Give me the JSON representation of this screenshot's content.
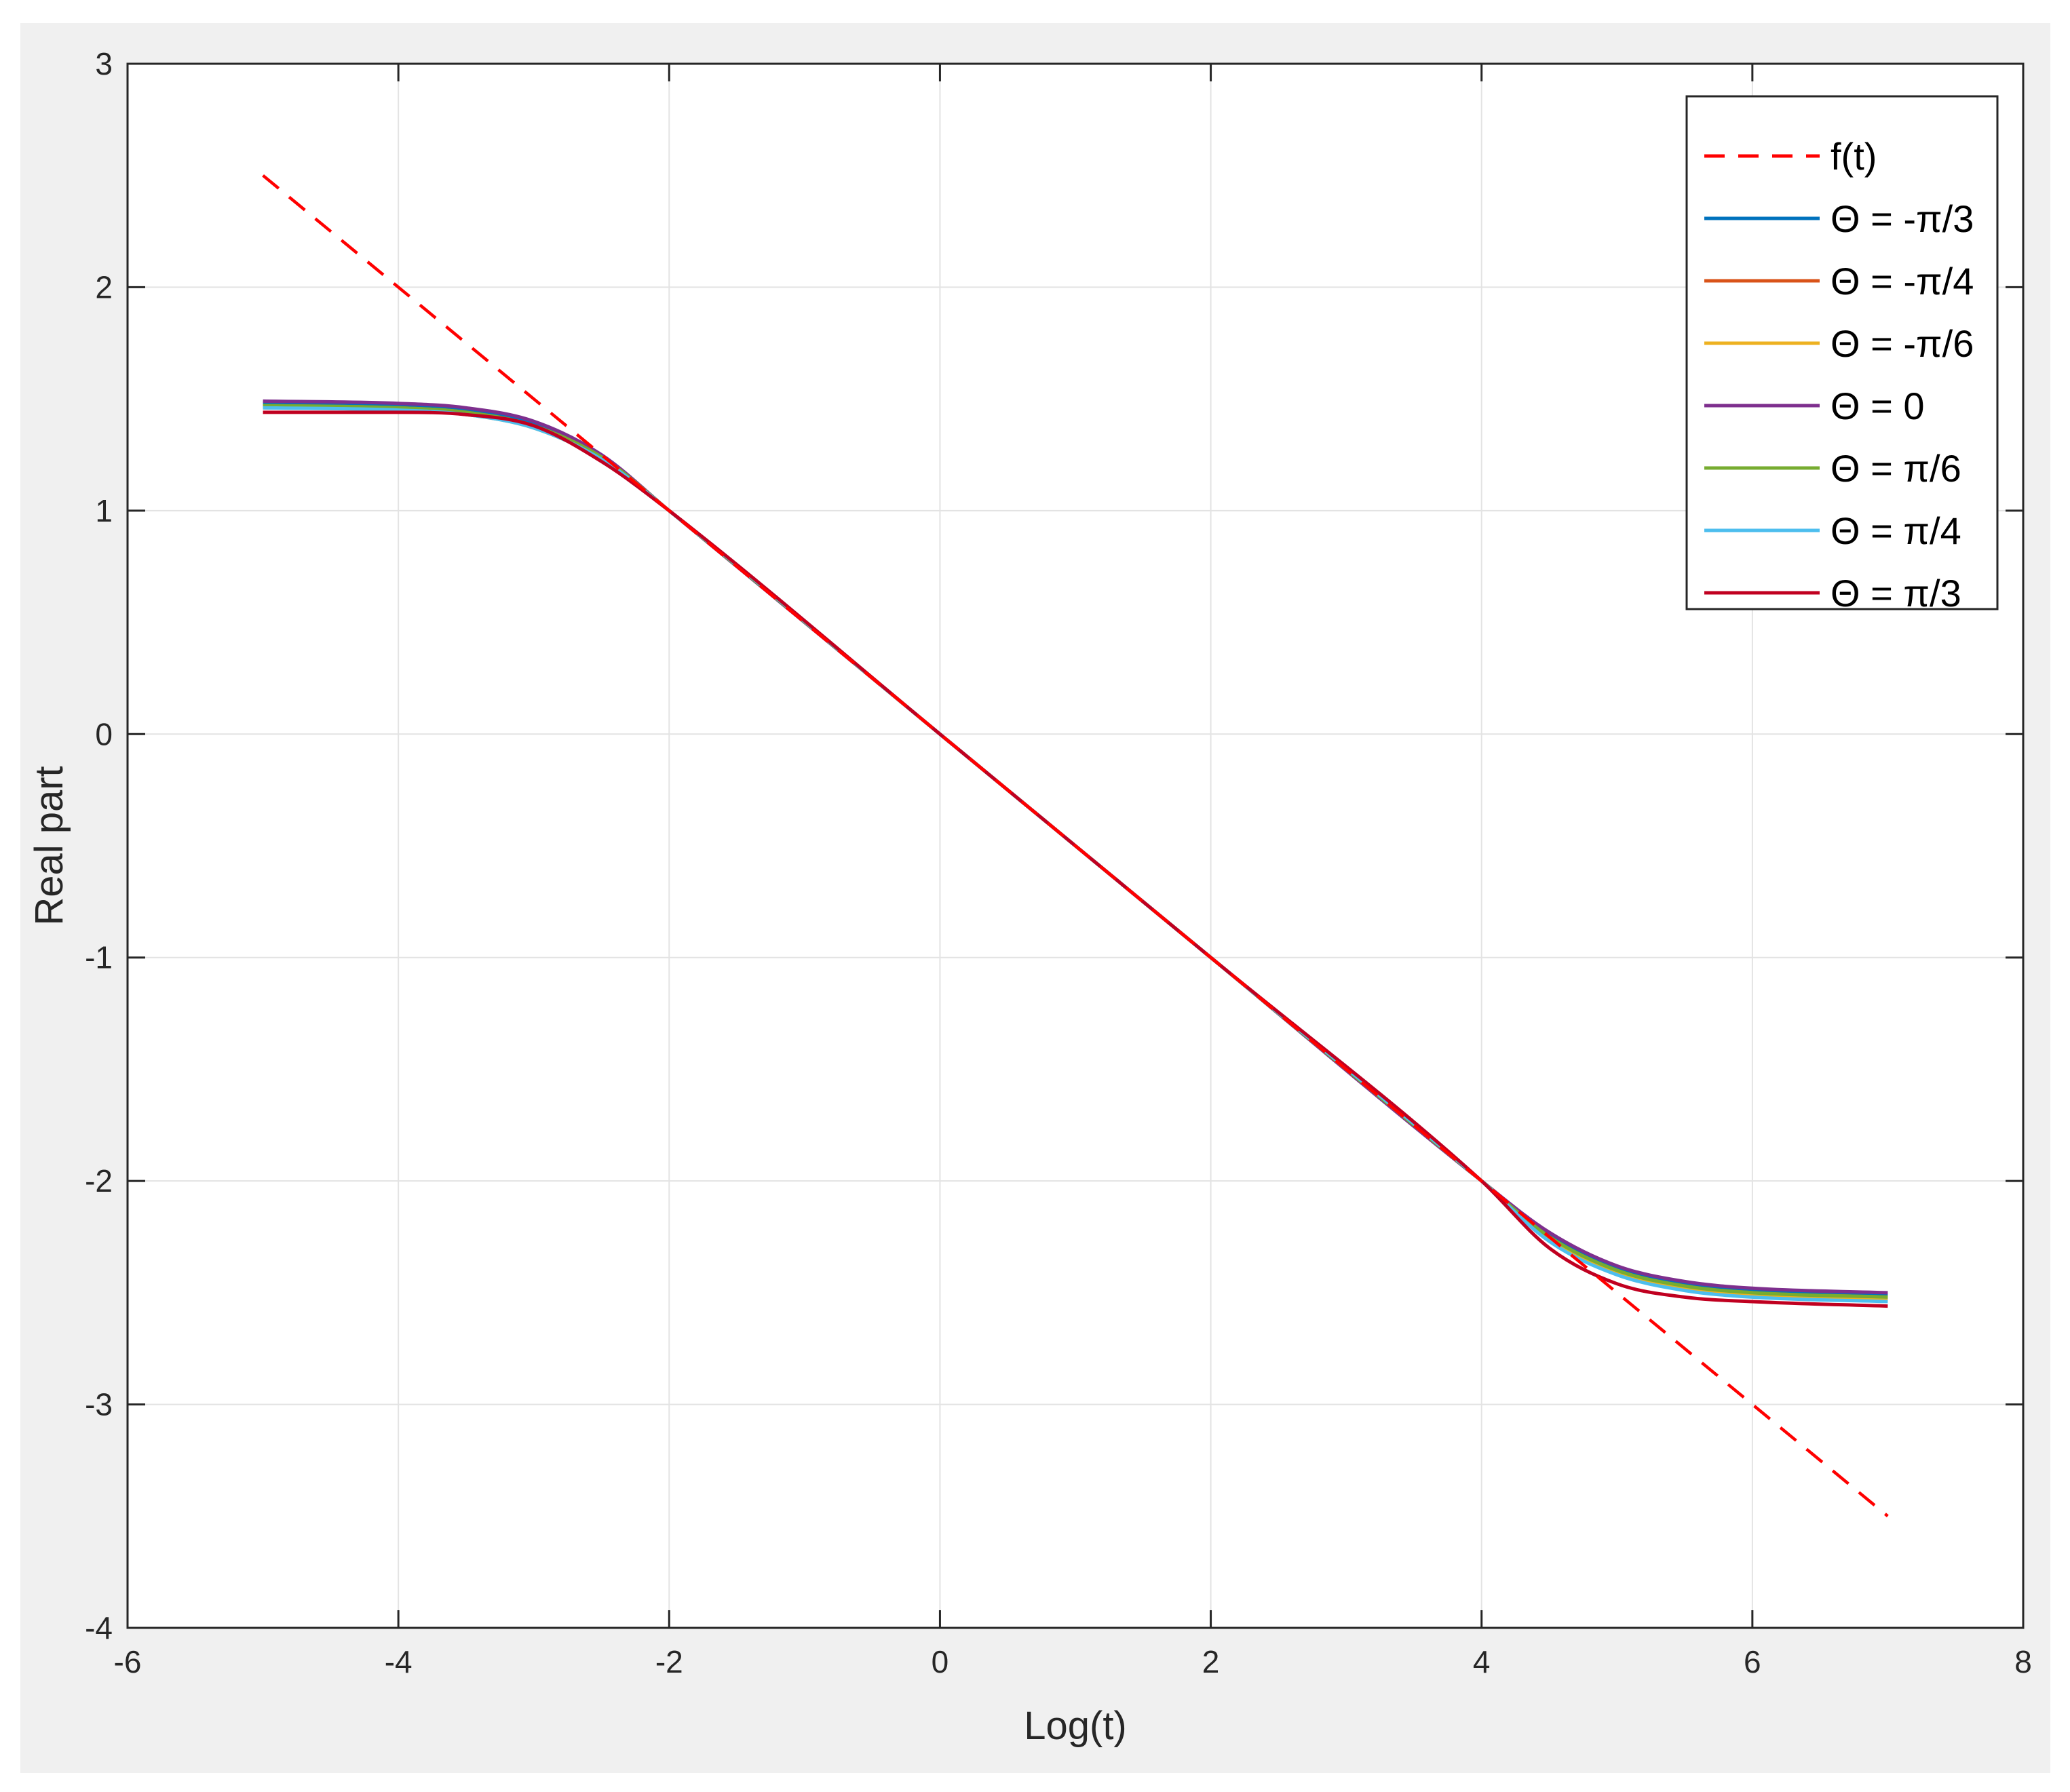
{
  "chart_data": {
    "type": "line",
    "title": "",
    "xlabel": "Log(t)",
    "ylabel": "Real part",
    "xlim": [
      -6,
      8
    ],
    "ylim": [
      -4,
      3
    ],
    "xticks": [
      -6,
      -4,
      -2,
      0,
      2,
      4,
      6,
      8
    ],
    "yticks": [
      -4,
      -3,
      -2,
      -1,
      0,
      1,
      2,
      3
    ],
    "xtick_labels": [
      "-6",
      "-4",
      "-2",
      "0",
      "2",
      "4",
      "6",
      "8"
    ],
    "ytick_labels": [
      "-4",
      "-3",
      "-2",
      "-1",
      "0",
      "1",
      "2",
      "3"
    ],
    "grid": true,
    "legend_position": "top-right",
    "series": [
      {
        "name": "f(t)",
        "label": "f(t)",
        "color": "#ff0000",
        "style": "dashed",
        "x": [
          -5,
          7
        ],
        "y": [
          2.5,
          -3.5
        ]
      },
      {
        "name": "Θ = -π/3",
        "label": "Θ = -π/3",
        "color": "#0072bd",
        "style": "solid",
        "x": [
          -5,
          -4,
          -3.5,
          -3,
          -2.5,
          -2,
          0,
          2,
          4,
          4.5,
          5,
          5.5,
          6,
          7
        ],
        "y": [
          1.48,
          1.47,
          1.45,
          1.39,
          1.24,
          1.0,
          0.0,
          -1.0,
          -2.0,
          -2.24,
          -2.39,
          -2.46,
          -2.49,
          -2.51
        ]
      },
      {
        "name": "Θ = -π/4",
        "label": "Θ = -π/4",
        "color": "#d95319",
        "style": "solid",
        "x": [
          -5,
          -4,
          -3.5,
          -3,
          -2.5,
          -2,
          0,
          2,
          4,
          4.5,
          5,
          5.5,
          6,
          7
        ],
        "y": [
          1.47,
          1.46,
          1.44,
          1.38,
          1.24,
          1.0,
          0.0,
          -1.0,
          -2.0,
          -2.25,
          -2.4,
          -2.47,
          -2.5,
          -2.52
        ]
      },
      {
        "name": "Θ = -π/6",
        "label": "Θ = -π/6",
        "color": "#edb120",
        "style": "solid",
        "x": [
          -5,
          -4,
          -3.5,
          -3,
          -2.5,
          -2,
          0,
          2,
          4,
          4.5,
          5,
          5.5,
          6,
          7
        ],
        "y": [
          1.46,
          1.45,
          1.43,
          1.37,
          1.23,
          1.0,
          0.0,
          -1.0,
          -2.0,
          -2.26,
          -2.41,
          -2.48,
          -2.51,
          -2.53
        ]
      },
      {
        "name": "Θ = 0",
        "label": "Θ = 0",
        "color": "#7e2f8e",
        "style": "solid",
        "x": [
          -5,
          -4,
          -3.5,
          -3,
          -2.5,
          -2,
          0,
          2,
          4,
          4.5,
          5,
          5.5,
          6,
          7
        ],
        "y": [
          1.49,
          1.48,
          1.46,
          1.4,
          1.25,
          1.0,
          0.0,
          -1.0,
          -2.0,
          -2.23,
          -2.38,
          -2.45,
          -2.48,
          -2.5
        ]
      },
      {
        "name": "Θ = π/6",
        "label": "Θ = π/6",
        "color": "#77ac30",
        "style": "solid",
        "x": [
          -5,
          -4,
          -3.5,
          -3,
          -2.5,
          -2,
          0,
          2,
          4,
          4.5,
          5,
          5.5,
          6,
          7
        ],
        "y": [
          1.47,
          1.46,
          1.44,
          1.38,
          1.24,
          1.0,
          0.0,
          -1.0,
          -2.0,
          -2.25,
          -2.4,
          -2.47,
          -2.5,
          -2.52
        ]
      },
      {
        "name": "Θ = π/4",
        "label": "Θ = π/4",
        "color": "#4dbeee",
        "style": "solid",
        "x": [
          -5,
          -4,
          -3.5,
          -3,
          -2.5,
          -2,
          0,
          2,
          4,
          4.5,
          5,
          5.5,
          6,
          7
        ],
        "y": [
          1.46,
          1.45,
          1.43,
          1.37,
          1.23,
          1.0,
          0.0,
          -1.0,
          -2.0,
          -2.27,
          -2.42,
          -2.49,
          -2.52,
          -2.54
        ]
      },
      {
        "name": "Θ = π/3",
        "label": "Θ = π/3",
        "color": "#c00020",
        "style": "solid",
        "x": [
          -5,
          -4,
          -3.5,
          -3,
          -2.5,
          -2,
          0,
          2,
          4,
          4.5,
          5,
          5.5,
          6,
          7
        ],
        "y": [
          1.44,
          1.44,
          1.43,
          1.38,
          1.22,
          1.0,
          0.0,
          -1.0,
          -2.0,
          -2.3,
          -2.46,
          -2.52,
          -2.54,
          -2.56
        ]
      }
    ]
  }
}
